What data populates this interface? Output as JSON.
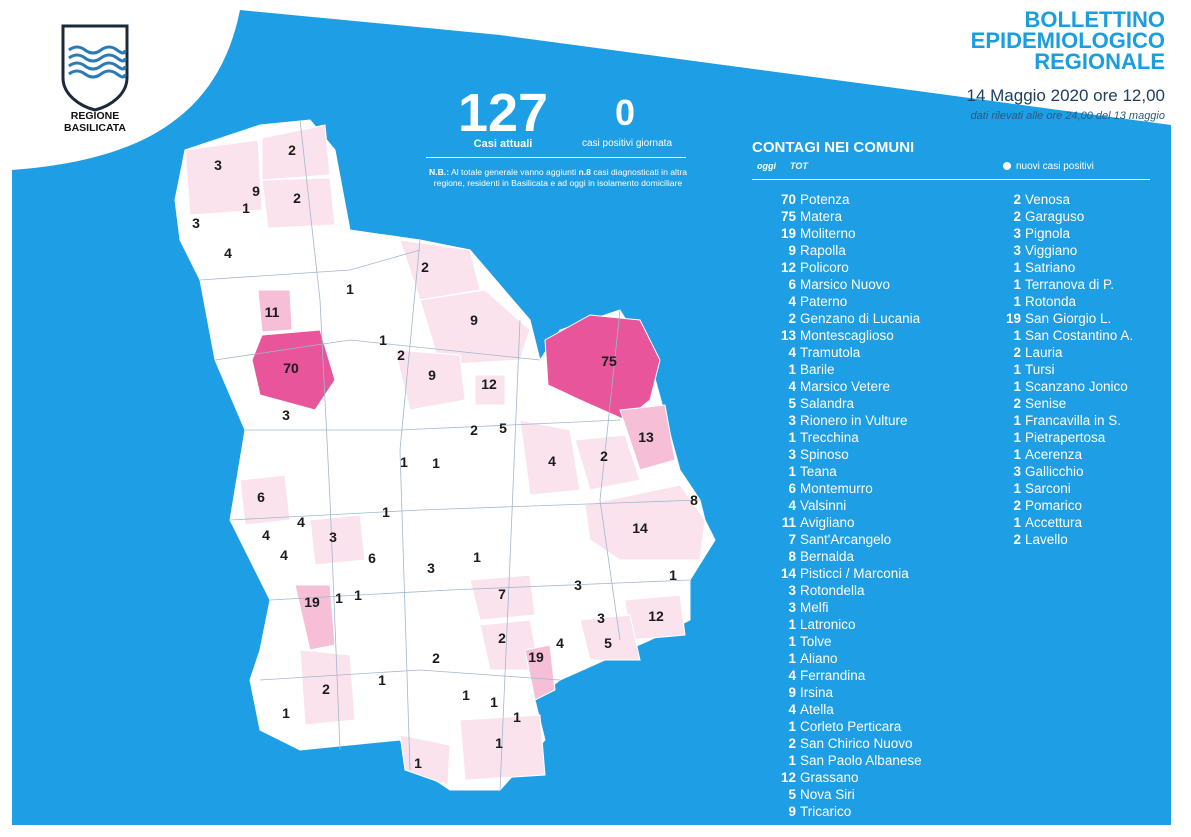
{
  "header": {
    "title_lines": [
      "BOLLETTINO",
      "EPIDEMIOLOGICO",
      "REGIONALE"
    ],
    "date": "14 Maggio 2020 ore 12,00",
    "data_note": "dati rilevati alle ore 24,00 del 13 maggio"
  },
  "logo": {
    "text_line1": "REGIONE",
    "text_line2": "BASILICATA"
  },
  "stats": {
    "active_cases": "127",
    "active_cases_label": "Casi attuali",
    "daily_positive": "0",
    "daily_positive_label": "casi positivi giornata",
    "note_prefix": "N.B.:",
    "note_text": " Al totale generale vanno aggiunti ",
    "note_bold": "n.8",
    "note_text2": " casi diagnosticati in altra regione, residenti in Basilicata e ad oggi in isolamento domiciliare"
  },
  "contagi": {
    "title": "CONTAGI NEI COMUNI",
    "col_today": "oggi",
    "col_total": "TOT",
    "legend_label": "nuovi casi positivi",
    "column1": [
      {
        "count": "70",
        "name": "Potenza"
      },
      {
        "count": "75",
        "name": "Matera"
      },
      {
        "count": "19",
        "name": "Moliterno"
      },
      {
        "count": "9",
        "name": "Rapolla"
      },
      {
        "count": "12",
        "name": "Policoro"
      },
      {
        "count": "6",
        "name": "Marsico Nuovo"
      },
      {
        "count": "4",
        "name": "Paterno"
      },
      {
        "count": "2",
        "name": "Genzano di Lucania"
      },
      {
        "count": "13",
        "name": "Montescaglioso"
      },
      {
        "count": "4",
        "name": "Tramutola"
      },
      {
        "count": "1",
        "name": "Barile"
      },
      {
        "count": "4",
        "name": "Marsico Vetere"
      },
      {
        "count": "5",
        "name": "Salandra"
      },
      {
        "count": "3",
        "name": "Rionero in Vulture"
      },
      {
        "count": "1",
        "name": "Trecchina"
      },
      {
        "count": "3",
        "name": "Spinoso"
      },
      {
        "count": "1",
        "name": "Teana"
      },
      {
        "count": "6",
        "name": "Montemurro"
      },
      {
        "count": "4",
        "name": "Valsinni"
      },
      {
        "count": "11",
        "name": "Avigliano"
      },
      {
        "count": "7",
        "name": "Sant'Arcangelo"
      },
      {
        "count": "8",
        "name": "Bernalda"
      },
      {
        "count": "14",
        "name": "Pisticci / Marconia"
      },
      {
        "count": "3",
        "name": "Rotondella"
      },
      {
        "count": "3",
        "name": "Melfi"
      },
      {
        "count": "1",
        "name": "Latronico"
      },
      {
        "count": "1",
        "name": "Tolve"
      },
      {
        "count": "1",
        "name": "Aliano"
      },
      {
        "count": "4",
        "name": "Ferrandina"
      },
      {
        "count": "9",
        "name": "Irsina"
      },
      {
        "count": "4",
        "name": "Atella"
      },
      {
        "count": "1",
        "name": "Corleto Perticara"
      },
      {
        "count": "2",
        "name": "San Chirico Nuovo"
      },
      {
        "count": "1",
        "name": "San Paolo Albanese"
      },
      {
        "count": "12",
        "name": "Grassano"
      },
      {
        "count": "5",
        "name": "Nova Siri"
      },
      {
        "count": "9",
        "name": "Tricarico"
      }
    ],
    "column2": [
      {
        "count": "2",
        "name": "Venosa"
      },
      {
        "count": "2",
        "name": "Garaguso"
      },
      {
        "count": "3",
        "name": "Pignola"
      },
      {
        "count": "3",
        "name": "Viggiano"
      },
      {
        "count": "1",
        "name": "Satriano"
      },
      {
        "count": "1",
        "name": "Terranova di P."
      },
      {
        "count": "1",
        "name": "Rotonda"
      },
      {
        "count": "19",
        "name": "San Giorgio L."
      },
      {
        "count": "1",
        "name": "San Costantino A."
      },
      {
        "count": "2",
        "name": "Lauria"
      },
      {
        "count": "1",
        "name": "Tursi"
      },
      {
        "count": "1",
        "name": "Scanzano Jonico"
      },
      {
        "count": "2",
        "name": "Senise"
      },
      {
        "count": "1",
        "name": "Francavilla in S."
      },
      {
        "count": "1",
        "name": "Pietrapertosa"
      },
      {
        "count": "1",
        "name": "Acerenza"
      },
      {
        "count": "3",
        "name": "Gallicchio"
      },
      {
        "count": "1",
        "name": "Sarconi"
      },
      {
        "count": "2",
        "name": "Pomarico"
      },
      {
        "count": "1",
        "name": "Accettura"
      },
      {
        "count": "2",
        "name": "Lavello"
      }
    ]
  },
  "map_labels": [
    "3",
    "2",
    "9",
    "1",
    "2",
    "3",
    "4",
    "2",
    "1",
    "11",
    "9",
    "1",
    "2",
    "70",
    "9",
    "12",
    "75",
    "3",
    "2",
    "5",
    "13",
    "1",
    "1",
    "4",
    "2",
    "8",
    "6",
    "4",
    "1",
    "14",
    "4",
    "3",
    "4",
    "6",
    "3",
    "1",
    "1",
    "19",
    "1",
    "3",
    "7",
    "1",
    "3",
    "12",
    "2",
    "19",
    "4",
    "5",
    "2",
    "2",
    "1",
    "1",
    "1",
    "1",
    "1",
    "1",
    "1"
  ],
  "colors": {
    "sky": "#1e9ee4",
    "map_base": "#ffffff",
    "map_light": "#fbe3ee",
    "map_mid": "#f6bfd7",
    "map_dark": "#e8559b",
    "accent_text": "#1a9ee0"
  }
}
